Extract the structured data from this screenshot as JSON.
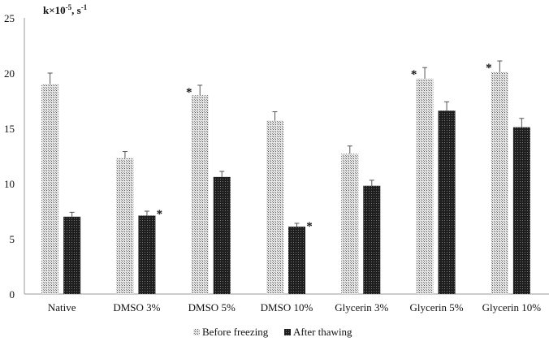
{
  "chart_data": {
    "type": "bar",
    "title": "",
    "ylabel": "k×10",
    "ylabel_exp": "-5",
    "ylabel_unit": ", s",
    "ylabel_unit_exp": "-1",
    "xlabel": "",
    "ylim": [
      0,
      25
    ],
    "yticks": [
      0,
      5,
      10,
      15,
      20,
      25
    ],
    "grid": false,
    "legend_position": "bottom",
    "categories": [
      "Native",
      "DMSO 3%",
      "DMSO 5%",
      "DMSO 10%",
      "Glycerin 3%",
      "Glycerin 5%",
      "Glycerin 10%"
    ],
    "series": [
      {
        "name": "Before freezing",
        "values": [
          19.0,
          12.3,
          18.0,
          15.7,
          12.7,
          19.5,
          20.1
        ],
        "errors": [
          1.0,
          0.6,
          0.9,
          0.8,
          0.7,
          1.0,
          1.0
        ],
        "significant": [
          false,
          false,
          true,
          false,
          false,
          true,
          true
        ],
        "color": "#bbbbbb"
      },
      {
        "name": "After thawing",
        "values": [
          7.0,
          7.1,
          10.6,
          6.1,
          9.8,
          16.6,
          15.1
        ],
        "errors": [
          0.4,
          0.4,
          0.5,
          0.3,
          0.5,
          0.8,
          0.8
        ],
        "significant": [
          false,
          true,
          false,
          true,
          false,
          false,
          false
        ],
        "color": "#2a2a2a"
      }
    ],
    "significance_marker": "*"
  }
}
